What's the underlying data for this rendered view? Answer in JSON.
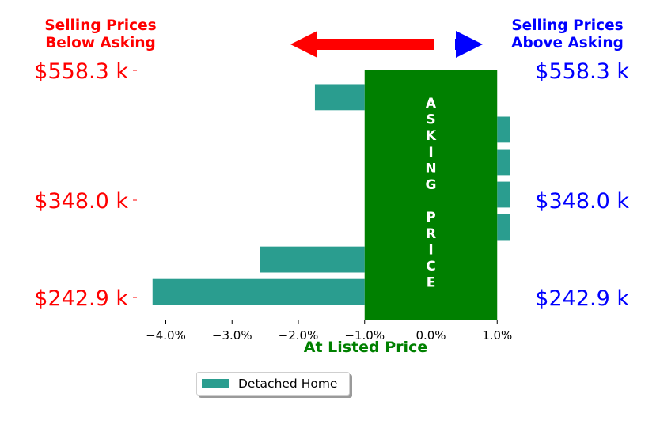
{
  "chart_data": {
    "type": "bar",
    "orientation": "horizontal",
    "xlabel": "At Listed Price",
    "xlim": [
      -4.4,
      1.2
    ],
    "xticks": [
      "−4.0%",
      "−3.0%",
      "−2.0%",
      "−1.0%",
      "0.0%",
      "1.0%"
    ],
    "xtick_values": [
      -4.0,
      -3.0,
      -2.0,
      -1.0,
      0.0,
      1.0
    ],
    "y_tick_labels": [
      "$558.3 k",
      "$348.0 k",
      "$242.9 k"
    ],
    "series": [
      {
        "name": "Detached Home",
        "color": "#2a9d8f",
        "bars": [
          {
            "left": -1.75,
            "right": -1.0
          },
          {
            "left": 1.0,
            "right": 1.2
          },
          {
            "left": 1.0,
            "right": 1.2
          },
          {
            "left": 1.0,
            "right": 1.2
          },
          {
            "left": 1.0,
            "right": 1.2
          },
          {
            "left": -2.58,
            "right": -1.0
          },
          {
            "left": -4.2,
            "right": -1.0
          }
        ]
      }
    ],
    "asking_band": {
      "from": -1.0,
      "to": 1.0,
      "color": "#008000",
      "label_letters": [
        "A",
        "S",
        "K",
        "I",
        "N",
        "G",
        "",
        "P",
        "R",
        "I",
        "C",
        "E"
      ]
    },
    "left_header": {
      "line1": "Selling Prices",
      "line2": "Below Asking",
      "color": "#ff0000"
    },
    "right_header": {
      "line1": "Selling Prices",
      "line2": "Above Asking",
      "color": "#0000ff"
    },
    "arrow_left_color": "#ff0000",
    "arrow_right_color": "#0000ff",
    "xlabel_color": "#008000",
    "legend_position": "bottom-center"
  }
}
